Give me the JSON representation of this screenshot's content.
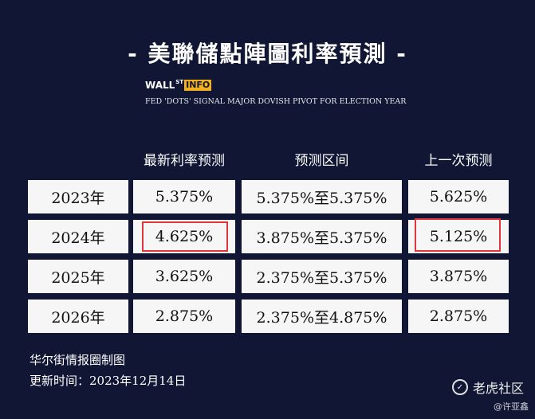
{
  "title": "- 美聯儲點陣圖利率預測 -",
  "logo": {
    "part1": "WALL",
    "sup": "ST",
    "part2": "INFO"
  },
  "subtitle": "FED 'DOTS' SIGNAL MAJOR DOVISH PIVOT FOR ELECTION YEAR",
  "columns": [
    "最新利率预测",
    "预测区间",
    "上一次预测"
  ],
  "rows": [
    {
      "year": "2023年",
      "latest": "5.375%",
      "range": "5.375%至5.375%",
      "previous": "5.625%"
    },
    {
      "year": "2024年",
      "latest": "4.625%",
      "range": "3.875%至5.375%",
      "previous": "5.125%"
    },
    {
      "year": "2025年",
      "latest": "3.625%",
      "range": "2.375%至5.375%",
      "previous": "3.875%"
    },
    {
      "year": "2026年",
      "latest": "2.875%",
      "range": "2.375%至4.875%",
      "previous": "2.875%"
    }
  ],
  "highlight_color": "#e0353a",
  "footer": {
    "source": "华尔街情报圈制图",
    "updated": "更新时间：2023年12月14日"
  },
  "watermark": {
    "brand": "老虎社区",
    "author": "@许亚鑫"
  }
}
